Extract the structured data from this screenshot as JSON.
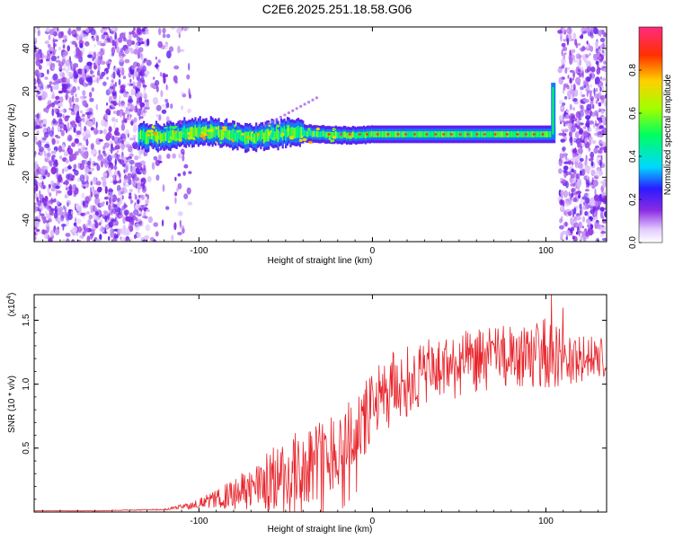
{
  "title": "C2E6.2025.251.18.58.G06",
  "chart_data": [
    {
      "type": "heatmap",
      "title": "C2E6.2025.251.18.58.G06",
      "xlabel": "Height of straight line (km)",
      "ylabel": "Frequency (Hz)",
      "xlim": [
        -195,
        135
      ],
      "ylim": [
        -50,
        50
      ],
      "x_ticks": [
        "-100",
        "0",
        "100"
      ],
      "y_ticks": [
        "-40",
        "-20",
        "0",
        "20",
        "40"
      ],
      "colorbar_label": "Normalized spectral amplitude",
      "colorbar_ticks": [
        "0.0",
        "0.2",
        "0.4",
        "0.6",
        "0.8"
      ],
      "colorbar_range": [
        0,
        1
      ],
      "colormap": [
        "#ffffff",
        "#e0c8ff",
        "#8a2be2",
        "#3a00ff",
        "#00ffff",
        "#00ff40",
        "#ffff00",
        "#ff8000",
        "#ff0000",
        "#ff40a0"
      ],
      "features": {
        "noise_left_x": [
          -195,
          -130
        ],
        "noise_right_x": [
          105,
          135
        ],
        "signal_band_x": [
          -135,
          105
        ],
        "signal_band_center_hz": 0,
        "spike_x": 104
      }
    },
    {
      "type": "line",
      "xlabel": "Height of straight line (km)",
      "ylabel": "SNR (10 * v/v)",
      "y_multiplier": "(x10",
      "y_multiplier_exp": "4",
      "y_multiplier_close": ")",
      "xlim": [
        -195,
        135
      ],
      "ylim": [
        0,
        1.7
      ],
      "x_ticks": [
        "-100",
        "0",
        "100"
      ],
      "y_ticks": [
        "0.5",
        "1.0",
        "1.5"
      ],
      "line_color": "#e8232a",
      "series": [
        {
          "name": "SNR",
          "x": [
            -195,
            -180,
            -160,
            -140,
            -120,
            -110,
            -100,
            -90,
            -80,
            -70,
            -60,
            -50,
            -40,
            -30,
            -20,
            -10,
            0,
            10,
            20,
            30,
            40,
            50,
            60,
            70,
            80,
            90,
            100,
            110,
            120,
            130,
            135
          ],
          "values": [
            0.01,
            0.01,
            0.01,
            0.015,
            0.02,
            0.04,
            0.07,
            0.1,
            0.14,
            0.18,
            0.24,
            0.3,
            0.36,
            0.42,
            0.5,
            0.62,
            0.8,
            0.95,
            1.02,
            1.08,
            1.12,
            1.15,
            1.18,
            1.2,
            1.22,
            1.2,
            1.25,
            1.2,
            1.18,
            1.2,
            1.18
          ],
          "noise_amplitude": [
            0.002,
            0.002,
            0.002,
            0.003,
            0.005,
            0.02,
            0.04,
            0.07,
            0.12,
            0.18,
            0.24,
            0.28,
            0.3,
            0.32,
            0.32,
            0.3,
            0.3,
            0.3,
            0.28,
            0.26,
            0.26,
            0.26,
            0.25,
            0.25,
            0.25,
            0.25,
            0.28,
            0.22,
            0.2,
            0.18,
            0.15
          ]
        }
      ]
    }
  ]
}
